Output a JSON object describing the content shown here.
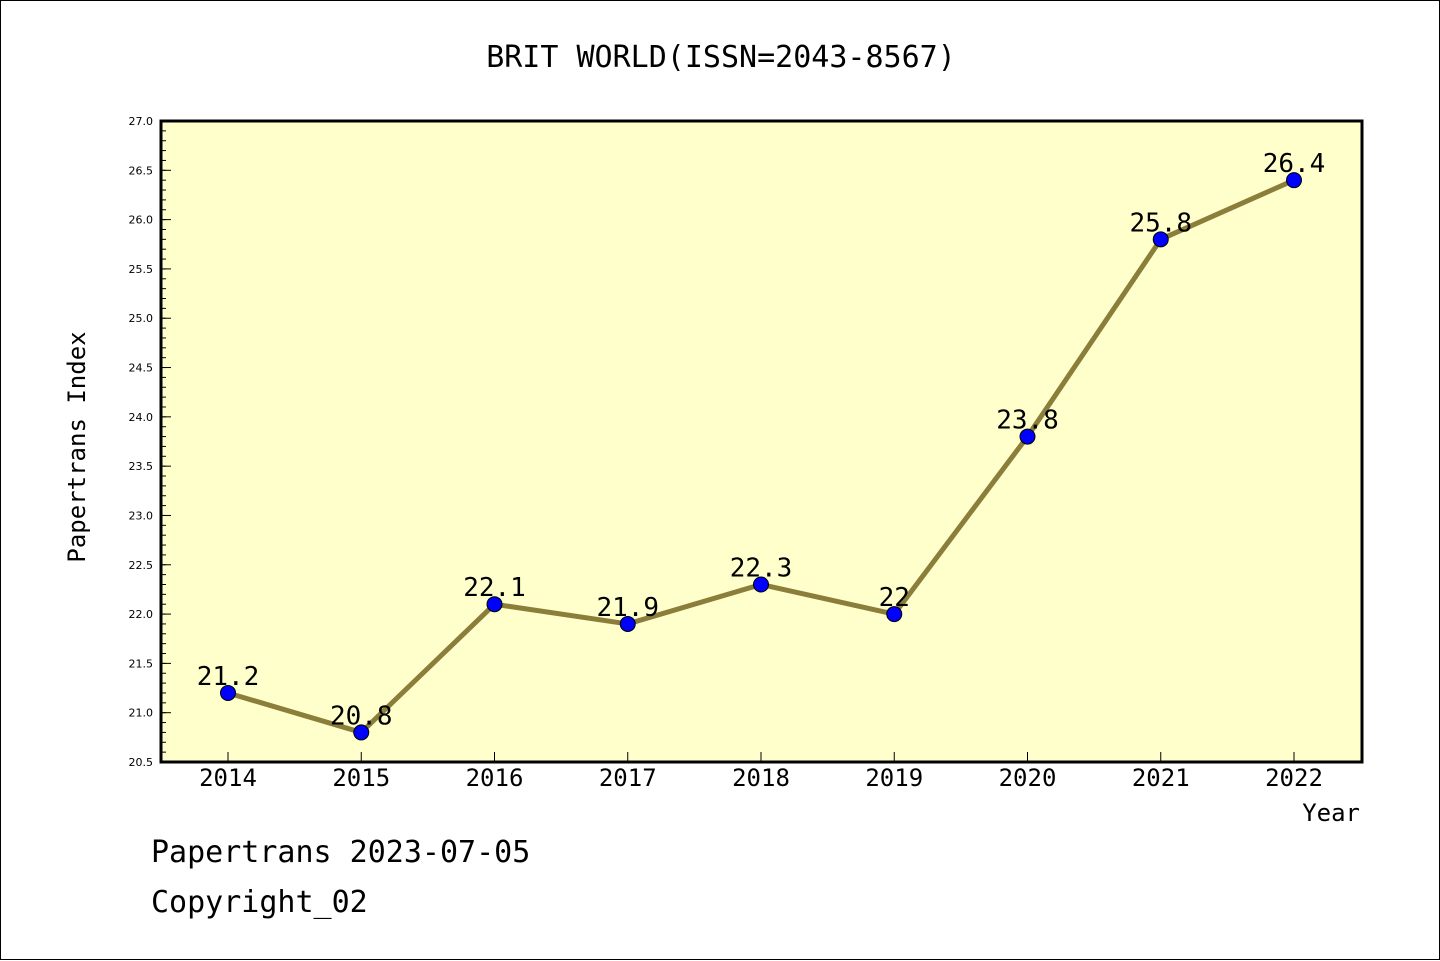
{
  "chart_data": {
    "type": "line",
    "title": "BRIT WORLD(ISSN=2043-8567)",
    "xlabel": "Year",
    "ylabel": "Papertrans Index",
    "x": [
      "2014",
      "2015",
      "2016",
      "2017",
      "2018",
      "2019",
      "2020",
      "2021",
      "2022"
    ],
    "values": [
      21.2,
      20.8,
      22.1,
      21.9,
      22.3,
      22.0,
      23.8,
      25.8,
      26.4
    ],
    "data_labels": [
      "21.2",
      "20.8",
      "22.1",
      "21.9",
      "22.3",
      "22",
      "23.8",
      "25.8",
      "26.4"
    ],
    "ylim": [
      20.5,
      27.0
    ],
    "yticks": [
      "20.5",
      "21.0",
      "21.5",
      "22.0",
      "22.5",
      "23.0",
      "23.5",
      "24.0",
      "24.5",
      "25.0",
      "25.5",
      "26.0",
      "26.5",
      "27.0"
    ],
    "grid": false,
    "colors": {
      "plot_background": "#ffffcc",
      "line": "#8b7d3a",
      "marker": "#0000ff"
    }
  },
  "footer": {
    "line1": "Papertrans 2023-07-05",
    "line2": "Copyright_02"
  }
}
